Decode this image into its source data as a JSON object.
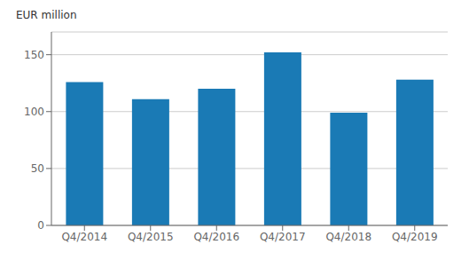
{
  "chart_data": {
    "type": "bar",
    "ylabel": "EUR million",
    "categories": [
      "Q4/2014",
      "Q4/2015",
      "Q4/2016",
      "Q4/2017",
      "Q4/2018",
      "Q4/2019"
    ],
    "values": [
      126,
      111,
      120,
      152,
      99,
      128
    ],
    "color": "#1a7ab5",
    "ylim": [
      0,
      170
    ],
    "yticks": [
      0,
      50,
      100,
      150
    ],
    "grid": true
  }
}
